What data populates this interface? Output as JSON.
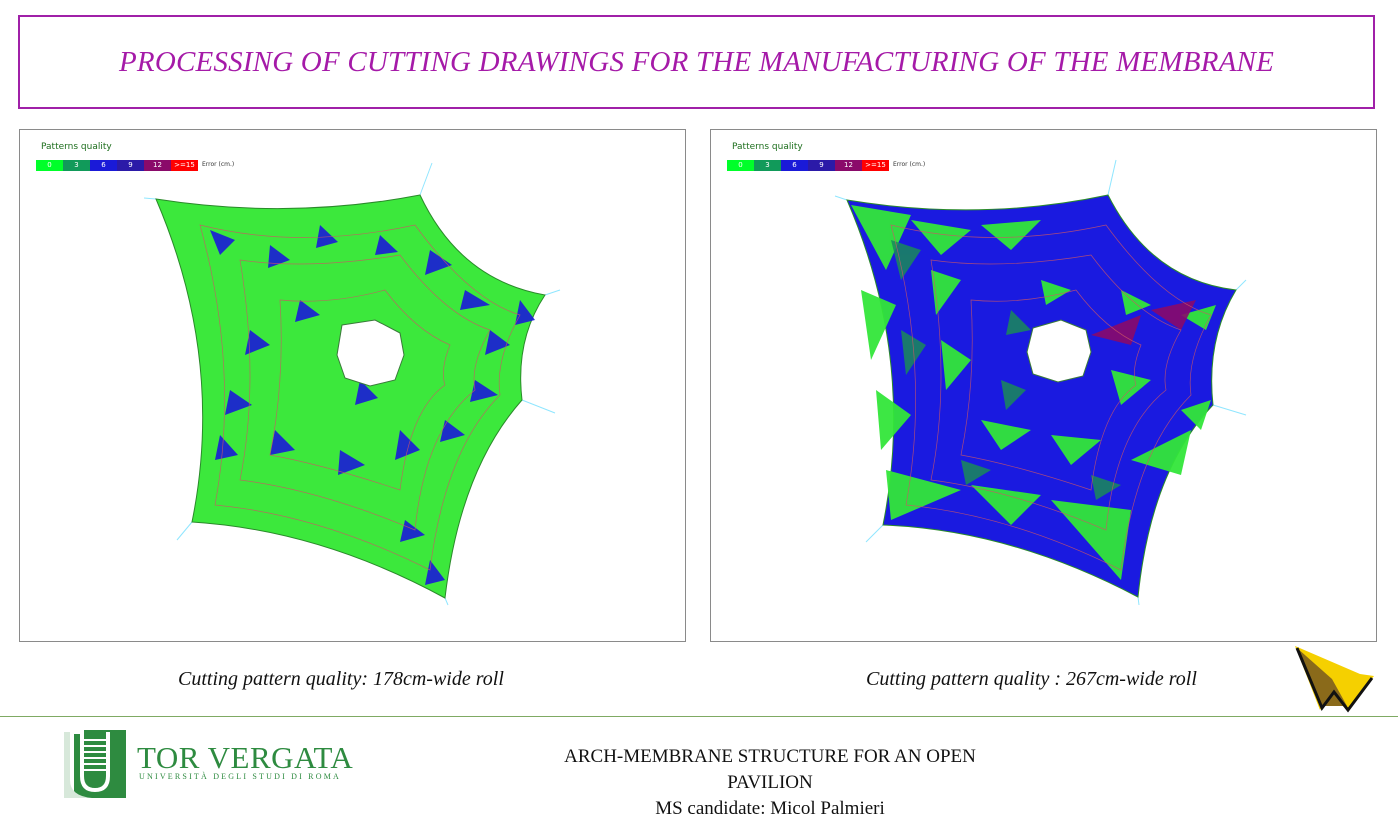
{
  "title": "PROCESSING OF CUTTING DRAWINGS FOR THE MANUFACTURING OF THE MEMBRANE",
  "legend": {
    "title": "Patterns quality",
    "unit": "Error (cm.)",
    "bins": [
      {
        "label": "0",
        "color": "#00ff2a"
      },
      {
        "label": "3",
        "color": "#119a5a"
      },
      {
        "label": "6",
        "color": "#1a1ad8"
      },
      {
        "label": "9",
        "color": "#2b1aa8"
      },
      {
        "label": "12",
        "color": "#8a0a6a"
      },
      {
        "label": ">=15",
        "color": "#ff0000"
      }
    ]
  },
  "panels": [
    {
      "caption": "Cutting pattern quality: 178cm-wide roll",
      "base_color": "#3ce83c",
      "accent_color": "#1a1ad8"
    },
    {
      "caption": "Cutting pattern quality : 267cm-wide roll",
      "base_color": "#1a1ae0",
      "accent_color": "#33e63a"
    }
  ],
  "footer": {
    "line1": "ARCH-MEMBRANE STRUCTURE FOR AN OPEN PAVILION",
    "line2": "MS candidate: Micol Palmieri",
    "university_name": "TOR VERGATA",
    "university_sub": "UNIVERSITÀ DEGLI STUDI DI ROMA"
  }
}
